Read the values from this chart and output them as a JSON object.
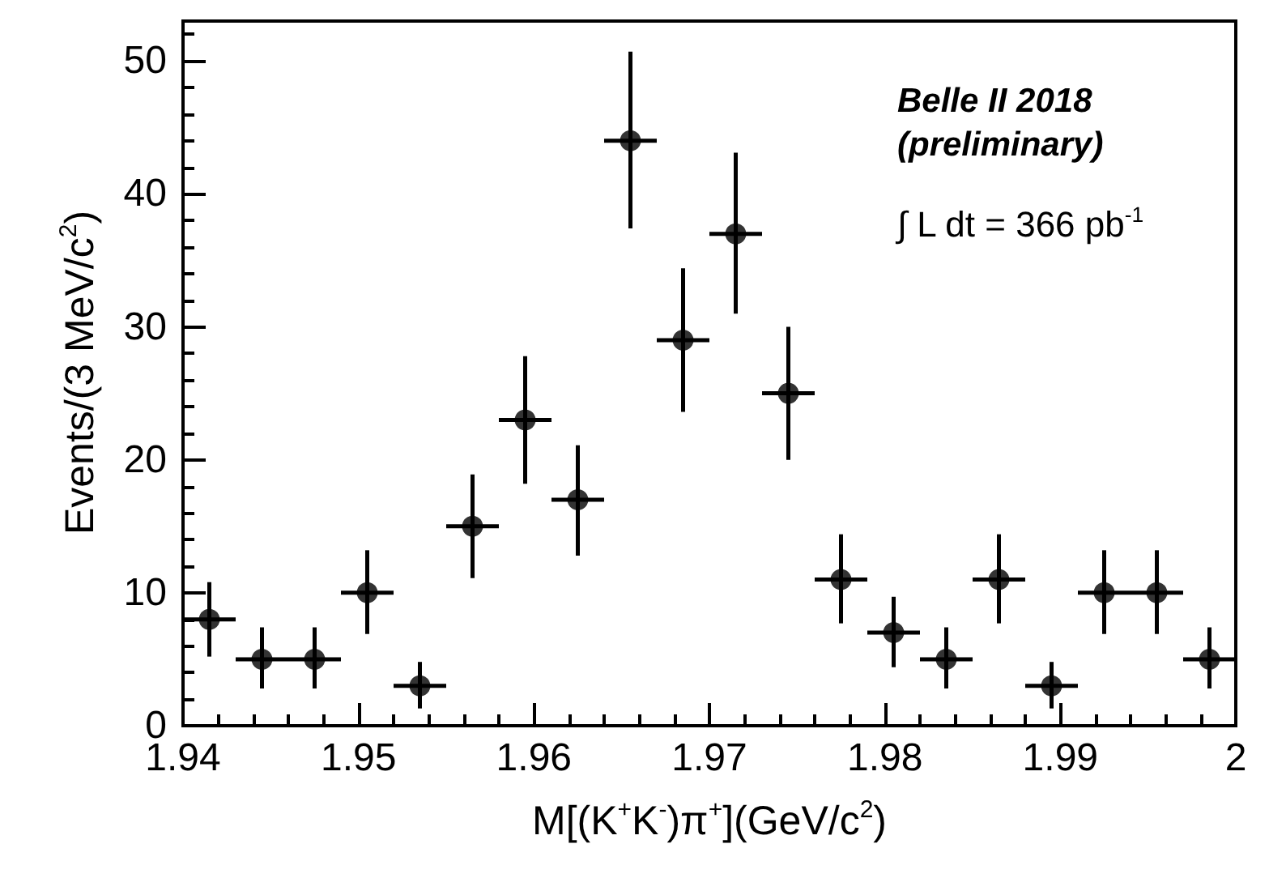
{
  "chart_data": {
    "type": "scatter",
    "xlabel": "M[(K$^{+}$K$^{-}$)π$^{+}$](GeV/c$^{2}$)",
    "ylabel": "Events/(3 MeV/c$^{2}$)",
    "annotations": [
      "Belle II 2018",
      "(preliminary)",
      "∫ L dt = 366 pb$^{-1}$"
    ],
    "x": [
      1.9415,
      1.9445,
      1.9475,
      1.9505,
      1.9535,
      1.9565,
      1.9595,
      1.9625,
      1.9655,
      1.9685,
      1.9715,
      1.9745,
      1.9775,
      1.9805,
      1.9835,
      1.9865,
      1.9895,
      1.9925,
      1.9955,
      1.9985
    ],
    "values": [
      8,
      5,
      5,
      10,
      3,
      15,
      23,
      17,
      44,
      29,
      37,
      25,
      11,
      7,
      5,
      11,
      3,
      10,
      10,
      5
    ],
    "errors": [
      [
        5.2,
        10.8
      ],
      [
        2.8,
        7.4
      ],
      [
        2.8,
        7.4
      ],
      [
        6.9,
        13.2
      ],
      [
        1.3,
        4.8
      ],
      [
        11.1,
        18.9
      ],
      [
        18.2,
        27.8
      ],
      [
        12.8,
        21.1
      ],
      [
        37.4,
        50.7
      ],
      [
        23.6,
        34.4
      ],
      [
        31,
        43.1
      ],
      [
        20,
        30
      ],
      [
        7.7,
        14.4
      ],
      [
        4.4,
        9.7
      ],
      [
        2.8,
        7.4
      ],
      [
        7.7,
        14.4
      ],
      [
        1.3,
        4.8
      ],
      [
        6.9,
        13.2
      ],
      [
        6.9,
        13.2
      ],
      [
        2.8,
        7.4
      ]
    ],
    "xerrors": [
      0.0015,
      0.0015,
      0.0015,
      0.0015,
      0.0015,
      0.0015,
      0.0015,
      0.0015,
      0.0015,
      0.0015,
      0.0015,
      0.0015,
      0.0015,
      0.0015,
      0.0015,
      0.0015,
      0.0015,
      0.0015,
      0.0015,
      0.0015
    ],
    "color": "#000000",
    "marker": "circle",
    "xlim": [
      1.94,
      2
    ],
    "xticks": [
      1.94,
      1.95,
      1.96,
      1.97,
      1.98,
      1.99,
      2
    ],
    "ylim": [
      0,
      53
    ],
    "yticks": [
      0,
      10,
      20,
      30,
      40,
      50
    ],
    "grid": false
  }
}
